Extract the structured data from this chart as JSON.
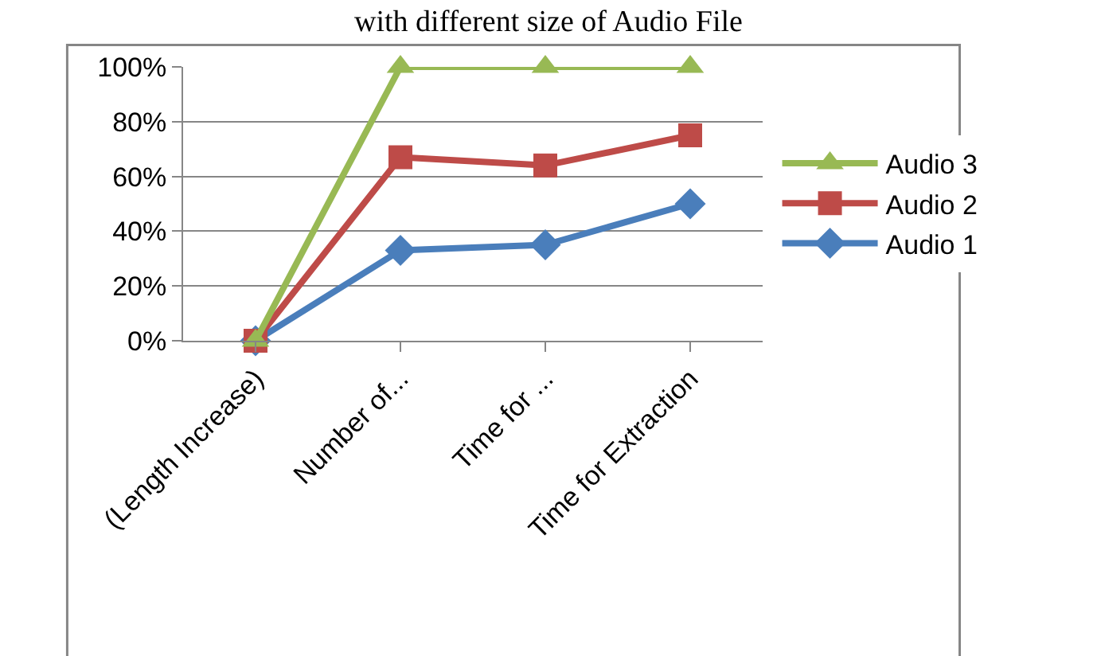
{
  "chart_data": {
    "type": "line",
    "title": "with different size of Audio File",
    "categories": [
      "(Length Increase)",
      "Number of...",
      "Time for ...",
      "Time for Extraction"
    ],
    "series": [
      {
        "name": "Audio 1",
        "color": "#4a7ebb",
        "marker": "diamond",
        "values": [
          0,
          33,
          35,
          50
        ]
      },
      {
        "name": "Audio 2",
        "color": "#be4b48",
        "marker": "square",
        "values": [
          0,
          67,
          64,
          75
        ]
      },
      {
        "name": "Audio 3",
        "color": "#98b954",
        "marker": "triangle",
        "values": [
          0,
          100,
          100,
          100
        ]
      }
    ],
    "ylim": [
      0,
      100
    ],
    "yticks": [
      {
        "value": 0,
        "label": "0%"
      },
      {
        "value": 20,
        "label": "20%"
      },
      {
        "value": 40,
        "label": "40%"
      },
      {
        "value": 60,
        "label": "60%"
      },
      {
        "value": 80,
        "label": "80%"
      },
      {
        "value": 100,
        "label": "100%"
      }
    ],
    "grid": "y",
    "legend": "right",
    "line_style": "solid"
  }
}
